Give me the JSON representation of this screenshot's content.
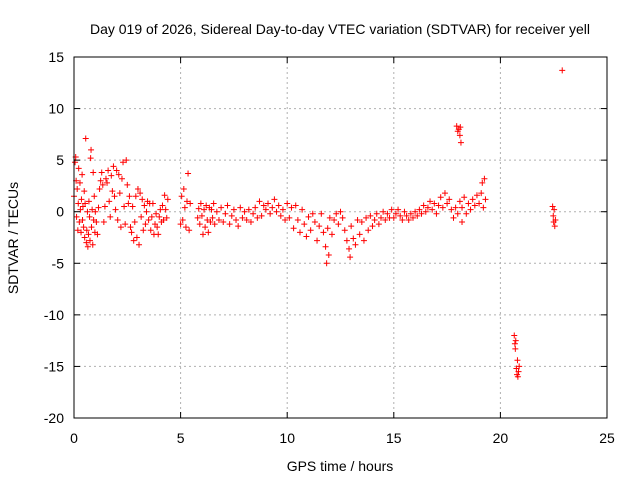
{
  "chart_data": {
    "type": "scatter",
    "title": "Day 019 of 2026, Sidereal Day-to-day VTEC variation (SDTVAR) for receiver yell",
    "xlabel": "GPS time / hours",
    "ylabel": "SDTVAR / TECUs",
    "xlim": [
      0,
      25
    ],
    "ylim": [
      -20,
      15
    ],
    "xticks": [
      0,
      5,
      10,
      15,
      20,
      25
    ],
    "yticks": [
      -20,
      -15,
      -10,
      -5,
      0,
      5,
      10,
      15
    ],
    "xtick_labels": [
      "0",
      "5",
      "10",
      "15",
      "20",
      "25"
    ],
    "ytick_labels": [
      "-20",
      "-15",
      "-10",
      "-5",
      "0",
      "5",
      "10",
      "15"
    ],
    "grid": true,
    "marker": "plus",
    "colors": {
      "series": "#ff0000",
      "grid": "#b0b0b0",
      "axis": "#000000"
    },
    "series": [
      {
        "name": "SDTVAR",
        "points": [
          [
            0.0,
            1.5
          ],
          [
            0.05,
            4.8
          ],
          [
            0.08,
            5.3
          ],
          [
            0.1,
            3.0
          ],
          [
            0.12,
            -0.5
          ],
          [
            0.15,
            2.2
          ],
          [
            0.18,
            -1.8
          ],
          [
            0.2,
            0.8
          ],
          [
            0.22,
            4.2
          ],
          [
            0.25,
            -1.0
          ],
          [
            0.28,
            2.8
          ],
          [
            0.3,
            0.2
          ],
          [
            0.33,
            -2.0
          ],
          [
            0.35,
            1.2
          ],
          [
            0.38,
            3.6
          ],
          [
            0.4,
            -0.8
          ],
          [
            0.42,
            0.5
          ],
          [
            0.45,
            -1.5
          ],
          [
            0.48,
            2.0
          ],
          [
            0.5,
            -2.5
          ],
          [
            0.52,
            0.8
          ],
          [
            0.55,
            7.1
          ],
          [
            0.58,
            -3.0
          ],
          [
            0.6,
            -1.8
          ],
          [
            0.63,
            0.0
          ],
          [
            0.65,
            -3.4
          ],
          [
            0.68,
            -2.2
          ],
          [
            0.7,
            1.0
          ],
          [
            0.73,
            -0.5
          ],
          [
            0.75,
            -2.8
          ],
          [
            0.78,
            5.2
          ],
          [
            0.8,
            6.0
          ],
          [
            0.82,
            -1.5
          ],
          [
            0.85,
            0.2
          ],
          [
            0.88,
            -3.2
          ],
          [
            0.9,
            3.8
          ],
          [
            0.92,
            -0.8
          ],
          [
            0.95,
            1.5
          ],
          [
            0.98,
            -2.0
          ],
          [
            1.0,
            0.0
          ],
          [
            1.05,
            -1.0
          ],
          [
            1.1,
            -2.2
          ],
          [
            1.15,
            0.4
          ],
          [
            1.2,
            2.2
          ],
          [
            1.25,
            3.0
          ],
          [
            1.3,
            3.8
          ],
          [
            1.35,
            2.6
          ],
          [
            1.4,
            -1.0
          ],
          [
            1.45,
            0.5
          ],
          [
            1.5,
            3.2
          ],
          [
            1.55,
            2.8
          ],
          [
            1.6,
            4.0
          ],
          [
            1.65,
            1.0
          ],
          [
            1.7,
            -0.5
          ],
          [
            1.75,
            3.5
          ],
          [
            1.8,
            2.0
          ],
          [
            1.85,
            4.4
          ],
          [
            1.9,
            1.5
          ],
          [
            1.95,
            0.2
          ],
          [
            2.0,
            4.0
          ],
          [
            2.05,
            -0.8
          ],
          [
            2.1,
            3.6
          ],
          [
            2.15,
            1.8
          ],
          [
            2.2,
            -1.5
          ],
          [
            2.25,
            3.2
          ],
          [
            2.3,
            4.8
          ],
          [
            2.35,
            0.5
          ],
          [
            2.4,
            -1.2
          ],
          [
            2.45,
            5.0
          ],
          [
            2.5,
            2.6
          ],
          [
            2.55,
            0.8
          ],
          [
            2.6,
            1.5
          ],
          [
            2.65,
            -1.5
          ],
          [
            2.7,
            -2.0
          ],
          [
            2.75,
            0.5
          ],
          [
            2.8,
            -2.8
          ],
          [
            2.85,
            -1.0
          ],
          [
            2.9,
            1.5
          ],
          [
            2.95,
            -2.5
          ],
          [
            3.0,
            2.2
          ],
          [
            3.05,
            -3.2
          ],
          [
            3.1,
            1.8
          ],
          [
            3.15,
            -0.5
          ],
          [
            3.2,
            1.2
          ],
          [
            3.25,
            -1.8
          ],
          [
            3.3,
            0.6
          ],
          [
            3.35,
            -1.2
          ],
          [
            3.4,
            0.0
          ],
          [
            3.45,
            1.0
          ],
          [
            3.5,
            -0.8
          ],
          [
            3.55,
            0.8
          ],
          [
            3.6,
            -1.8
          ],
          [
            3.65,
            -0.5
          ],
          [
            3.7,
            0.8
          ],
          [
            3.75,
            -2.2
          ],
          [
            3.8,
            -1.2
          ],
          [
            3.85,
            -0.2
          ],
          [
            3.9,
            -1.5
          ],
          [
            3.95,
            -2.2
          ],
          [
            4.0,
            -0.5
          ],
          [
            4.05,
            0.2
          ],
          [
            4.1,
            -1.0
          ],
          [
            4.15,
            0.6
          ],
          [
            4.2,
            -0.8
          ],
          [
            4.25,
            1.6
          ],
          [
            4.3,
            0.2
          ],
          [
            4.35,
            -0.6
          ],
          [
            4.4,
            1.2
          ],
          [
            5.0,
            -1.2
          ],
          [
            5.05,
            1.5
          ],
          [
            5.1,
            -0.8
          ],
          [
            5.15,
            2.2
          ],
          [
            5.2,
            0.4
          ],
          [
            5.25,
            -1.5
          ],
          [
            5.3,
            1.0
          ],
          [
            5.35,
            3.7
          ],
          [
            5.4,
            -1.8
          ],
          [
            5.45,
            0.8
          ],
          [
            5.8,
            -0.6
          ],
          [
            5.85,
            0.3
          ],
          [
            5.9,
            -1.2
          ],
          [
            5.95,
            0.8
          ],
          [
            6.0,
            -0.4
          ],
          [
            6.05,
            -2.2
          ],
          [
            6.1,
            0.2
          ],
          [
            6.15,
            -1.5
          ],
          [
            6.2,
            0.6
          ],
          [
            6.25,
            -0.8
          ],
          [
            6.3,
            -2.0
          ],
          [
            6.35,
            0.4
          ],
          [
            6.4,
            -1.0
          ],
          [
            6.45,
            0.2
          ],
          [
            6.5,
            -0.6
          ],
          [
            6.55,
            0.8
          ],
          [
            6.6,
            -1.2
          ],
          [
            6.7,
            0.0
          ],
          [
            6.8,
            -0.8
          ],
          [
            6.9,
            0.4
          ],
          [
            7.0,
            -1.0
          ],
          [
            7.1,
            -0.2
          ],
          [
            7.2,
            0.6
          ],
          [
            7.3,
            -1.2
          ],
          [
            7.4,
            -0.4
          ],
          [
            7.5,
            0.2
          ],
          [
            7.6,
            -0.8
          ],
          [
            7.7,
            -1.4
          ],
          [
            7.8,
            0.4
          ],
          [
            7.9,
            -0.6
          ],
          [
            8.0,
            0.0
          ],
          [
            8.1,
            -0.8
          ],
          [
            8.2,
            0.2
          ],
          [
            8.3,
            -1.0
          ],
          [
            8.4,
            -0.2
          ],
          [
            8.5,
            0.4
          ],
          [
            8.6,
            -0.6
          ],
          [
            8.7,
            1.0
          ],
          [
            8.8,
            -0.4
          ],
          [
            8.9,
            0.6
          ],
          [
            9.0,
            0.2
          ],
          [
            9.1,
            0.8
          ],
          [
            9.2,
            -0.2
          ],
          [
            9.3,
            0.4
          ],
          [
            9.4,
            1.2
          ],
          [
            9.5,
            0.0
          ],
          [
            9.6,
            0.6
          ],
          [
            9.7,
            -0.4
          ],
          [
            9.8,
            0.2
          ],
          [
            9.9,
            -0.8
          ],
          [
            10.0,
            0.8
          ],
          [
            10.1,
            -0.6
          ],
          [
            10.2,
            0.4
          ],
          [
            10.3,
            -1.6
          ],
          [
            10.4,
            0.6
          ],
          [
            10.5,
            -0.8
          ],
          [
            10.6,
            -2.0
          ],
          [
            10.7,
            0.2
          ],
          [
            10.8,
            -1.2
          ],
          [
            10.9,
            -2.4
          ],
          [
            11.0,
            -0.5
          ],
          [
            11.1,
            -1.8
          ],
          [
            11.2,
            -0.2
          ],
          [
            11.3,
            -1.0
          ],
          [
            11.4,
            -2.8
          ],
          [
            11.5,
            -1.4
          ],
          [
            11.6,
            -0.2
          ],
          [
            11.7,
            -2.0
          ],
          [
            11.8,
            -3.4
          ],
          [
            11.85,
            -5.0
          ],
          [
            11.9,
            -1.6
          ],
          [
            11.95,
            -4.2
          ],
          [
            12.0,
            -0.6
          ],
          [
            12.1,
            -2.2
          ],
          [
            12.2,
            -0.8
          ],
          [
            12.3,
            -0.2
          ],
          [
            12.4,
            -1.2
          ],
          [
            12.5,
            0.0
          ],
          [
            12.6,
            -0.6
          ],
          [
            12.7,
            -1.8
          ],
          [
            12.8,
            -2.8
          ],
          [
            12.9,
            -3.6
          ],
          [
            12.95,
            -4.4
          ],
          [
            13.0,
            -1.4
          ],
          [
            13.1,
            -2.6
          ],
          [
            13.2,
            -3.2
          ],
          [
            13.3,
            -0.8
          ],
          [
            13.4,
            -2.2
          ],
          [
            13.5,
            -1.0
          ],
          [
            13.6,
            -2.8
          ],
          [
            13.7,
            -0.6
          ],
          [
            13.8,
            -1.8
          ],
          [
            13.9,
            -0.4
          ],
          [
            14.0,
            -1.4
          ],
          [
            14.1,
            -0.8
          ],
          [
            14.2,
            -0.2
          ],
          [
            14.3,
            -1.2
          ],
          [
            14.4,
            -0.6
          ],
          [
            14.5,
            0.0
          ],
          [
            14.6,
            -0.8
          ],
          [
            14.7,
            -0.2
          ],
          [
            14.8,
            -0.6
          ],
          [
            14.9,
            0.2
          ],
          [
            15.0,
            -0.6
          ],
          [
            15.1,
            -0.2
          ],
          [
            15.2,
            0.2
          ],
          [
            15.3,
            -0.4
          ],
          [
            15.4,
            -0.8
          ],
          [
            15.5,
            0.0
          ],
          [
            15.6,
            -0.4
          ],
          [
            15.7,
            -0.8
          ],
          [
            15.8,
            -0.2
          ],
          [
            15.9,
            -0.6
          ],
          [
            16.0,
            0.0
          ],
          [
            16.1,
            -0.4
          ],
          [
            16.2,
            0.2
          ],
          [
            16.3,
            -0.2
          ],
          [
            16.4,
            0.6
          ],
          [
            16.5,
            0.0
          ],
          [
            16.6,
            0.4
          ],
          [
            16.7,
            1.0
          ],
          [
            16.8,
            0.2
          ],
          [
            16.9,
            0.8
          ],
          [
            17.0,
            -0.2
          ],
          [
            17.1,
            0.6
          ],
          [
            17.2,
            1.4
          ],
          [
            17.3,
            0.4
          ],
          [
            17.4,
            1.8
          ],
          [
            17.5,
            0.8
          ],
          [
            17.6,
            1.2
          ],
          [
            17.7,
            0.2
          ],
          [
            17.8,
            -0.6
          ],
          [
            17.9,
            0.4
          ],
          [
            18.0,
            -0.2
          ],
          [
            18.1,
            1.0
          ],
          [
            18.2,
            0.4
          ],
          [
            18.3,
            1.4
          ],
          [
            18.4,
            -0.2
          ],
          [
            18.5,
            0.8
          ],
          [
            18.6,
            0.2
          ],
          [
            18.7,
            1.2
          ],
          [
            18.8,
            0.6
          ],
          [
            18.9,
            1.6
          ],
          [
            19.0,
            0.8
          ],
          [
            19.1,
            1.8
          ],
          [
            19.15,
            2.8
          ],
          [
            19.2,
            0.4
          ],
          [
            19.25,
            3.2
          ],
          [
            19.3,
            1.2
          ],
          [
            17.95,
            8.3
          ],
          [
            18.0,
            7.8
          ],
          [
            18.05,
            8.0
          ],
          [
            18.1,
            7.4
          ],
          [
            18.12,
            8.2
          ],
          [
            18.15,
            6.7
          ],
          [
            18.2,
            -1.0
          ],
          [
            20.65,
            -12.0
          ],
          [
            20.68,
            -12.8
          ],
          [
            20.7,
            -13.3
          ],
          [
            20.72,
            -12.5
          ],
          [
            20.75,
            -15.2
          ],
          [
            20.78,
            -15.8
          ],
          [
            20.8,
            -14.4
          ],
          [
            20.82,
            -16.0
          ],
          [
            20.85,
            -15.5
          ],
          [
            20.88,
            -15.0
          ],
          [
            22.45,
            0.5
          ],
          [
            22.48,
            -0.4
          ],
          [
            22.5,
            -1.0
          ],
          [
            22.52,
            0.2
          ],
          [
            22.55,
            -1.4
          ],
          [
            22.58,
            -0.8
          ],
          [
            22.9,
            13.7
          ]
        ]
      }
    ]
  }
}
